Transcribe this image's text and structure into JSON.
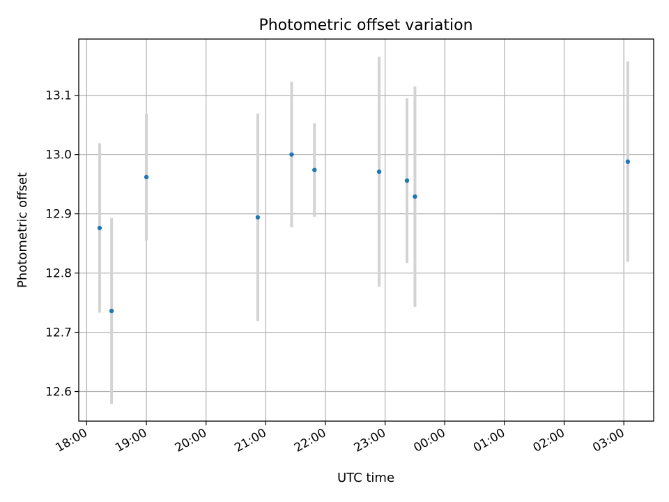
{
  "chart_data": {
    "type": "scatter",
    "title": "Photometric offset variation",
    "xlabel": "UTC time",
    "ylabel": "Photometric offset",
    "grid": true,
    "legend": "none",
    "x_range": [
      "17:52",
      "03:30"
    ],
    "ylim": [
      12.55,
      13.195
    ],
    "y_ticks": [
      12.6,
      12.7,
      12.8,
      12.9,
      13.0,
      13.1
    ],
    "y_tick_labels": [
      "12.6",
      "12.7",
      "12.8",
      "12.9",
      "13.0",
      "13.1"
    ],
    "x_ticks": [
      "18:00",
      "19:00",
      "20:00",
      "21:00",
      "22:00",
      "23:00",
      "00:00",
      "01:00",
      "02:00",
      "03:00"
    ],
    "x_tick_labels": [
      "18:00",
      "19:00",
      "20:00",
      "21:00",
      "22:00",
      "23:00",
      "00:00",
      "01:00",
      "02:00",
      "03:00"
    ],
    "point_color": "#1f77b4",
    "errorbar_color": "#d3d3d3",
    "points": [
      {
        "x": "18:13",
        "y": 12.876,
        "err": 0.143
      },
      {
        "x": "18:25",
        "y": 12.736,
        "err": 0.157
      },
      {
        "x": "19:00",
        "y": 12.962,
        "err": 0.107
      },
      {
        "x": "20:52",
        "y": 12.894,
        "err": 0.175
      },
      {
        "x": "21:26",
        "y": 13.0,
        "err": 0.123
      },
      {
        "x": "21:49",
        "y": 12.974,
        "err": 0.079
      },
      {
        "x": "22:54",
        "y": 12.971,
        "err": 0.194
      },
      {
        "x": "23:22",
        "y": 12.956,
        "err": 0.139
      },
      {
        "x": "23:30",
        "y": 12.929,
        "err": 0.186
      },
      {
        "x": "03:04",
        "y": 12.988,
        "err": 0.169
      }
    ]
  }
}
